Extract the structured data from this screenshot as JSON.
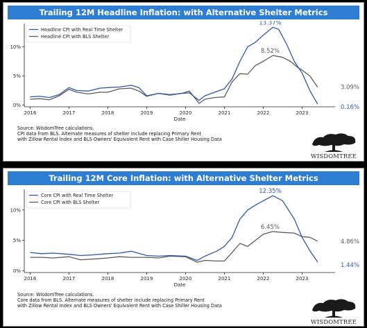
{
  "colors": {
    "title_bg": "#2d7dd2",
    "series_blue": "#2f57a8",
    "series_gray": "#5a5a5a"
  },
  "brand": {
    "name": "WisdomTree",
    "logo_text": "WISDOMTREE",
    "icon": "tree-logo-icon"
  },
  "chart_data": [
    {
      "type": "line",
      "title": "Trailing 12M Headline Inflation: with Alternative Shelter Metrics",
      "xlabel": "Date",
      "ylabel": "",
      "xlim": [
        2015.85,
        2023.85
      ],
      "ylim": [
        -0.3,
        14.0
      ],
      "xticks": [
        "2016",
        "2017",
        "2018",
        "2019",
        "2020",
        "2021",
        "2022",
        "2023"
      ],
      "yticks": [
        "0%",
        "5%",
        "10%"
      ],
      "ytick_values": [
        0,
        5,
        10
      ],
      "legend_position": "top-left",
      "grid": false,
      "series": [
        {
          "name": "Headline CPI with Real Time Shelter",
          "x": [
            2016.0,
            2016.25,
            2016.5,
            2016.75,
            2017.0,
            2017.2,
            2017.5,
            2017.8,
            2018.0,
            2018.3,
            2018.6,
            2018.8,
            2019.0,
            2019.3,
            2019.6,
            2019.9,
            2020.1,
            2020.35,
            2020.5,
            2020.75,
            2021.0,
            2021.2,
            2021.4,
            2021.6,
            2021.8,
            2022.0,
            2022.25,
            2022.4,
            2022.6,
            2022.8,
            2023.0,
            2023.2,
            2023.4
          ],
          "y": [
            1.4,
            1.5,
            1.3,
            1.8,
            3.0,
            2.5,
            2.4,
            2.9,
            3.0,
            3.1,
            3.4,
            3.0,
            1.6,
            2.0,
            1.8,
            2.0,
            2.1,
            0.8,
            1.6,
            2.2,
            2.8,
            4.5,
            7.5,
            10.0,
            10.8,
            12.0,
            13.37,
            13.0,
            10.5,
            7.5,
            5.5,
            2.5,
            0.16
          ],
          "end_label": "0.16%",
          "peak_label": "13.37%"
        },
        {
          "name": "Headline CPI with BLS Shelter",
          "x": [
            2016.0,
            2016.25,
            2016.5,
            2016.75,
            2017.0,
            2017.2,
            2017.5,
            2017.8,
            2018.0,
            2018.3,
            2018.6,
            2018.8,
            2019.0,
            2019.3,
            2019.6,
            2019.9,
            2020.1,
            2020.35,
            2020.5,
            2020.75,
            2021.0,
            2021.2,
            2021.4,
            2021.6,
            2021.8,
            2022.0,
            2022.25,
            2022.5,
            2022.7,
            2022.9,
            2023.0,
            2023.2,
            2023.4
          ],
          "y": [
            1.0,
            1.1,
            0.9,
            1.6,
            2.7,
            2.2,
            1.9,
            2.2,
            2.2,
            2.8,
            2.9,
            2.4,
            1.5,
            2.0,
            1.7,
            2.0,
            2.4,
            0.3,
            1.0,
            1.3,
            1.4,
            4.0,
            5.4,
            5.3,
            6.8,
            7.5,
            8.52,
            8.2,
            7.5,
            6.4,
            6.0,
            5.0,
            3.09
          ],
          "end_label": "3.09%",
          "peak_label": "8.52%"
        }
      ],
      "annotations": [
        "13.37%",
        "8.52%",
        "3.09%",
        "0.16%"
      ],
      "source": [
        "Source: WisdomTree calculations.",
        "CPI data from BLS. Alternate measures of shelter include replacing Primary Rent",
        "with Zillow Rental Index and BLS Owners' Equivalent Rent with Case Shiller Housing Data"
      ]
    },
    {
      "type": "line",
      "title": "Trailing 12M Core Inflation: with Alternative Shelter Metrics",
      "xlabel": "Date",
      "ylabel": "",
      "xlim": [
        2015.85,
        2023.85
      ],
      "ylim": [
        -0.3,
        13.4
      ],
      "xticks": [
        "2016",
        "2017",
        "2018",
        "2019",
        "2020",
        "2021",
        "2022",
        "2023"
      ],
      "yticks": [
        "0%",
        "5%",
        "10%"
      ],
      "ytick_values": [
        0,
        5,
        10
      ],
      "legend_position": "top-left",
      "grid": false,
      "series": [
        {
          "name": "Core CPI with Real Time Shelter",
          "x": [
            2016.0,
            2016.3,
            2016.6,
            2017.0,
            2017.3,
            2017.6,
            2018.0,
            2018.3,
            2018.6,
            2019.0,
            2019.3,
            2019.6,
            2020.0,
            2020.3,
            2020.5,
            2020.8,
            2021.0,
            2021.2,
            2021.4,
            2021.6,
            2021.8,
            2022.0,
            2022.25,
            2022.5,
            2022.8,
            2023.0,
            2023.2,
            2023.4
          ],
          "y": [
            3.0,
            2.8,
            2.9,
            2.7,
            2.5,
            2.6,
            2.8,
            2.9,
            3.2,
            2.5,
            2.4,
            2.5,
            2.4,
            1.7,
            2.4,
            3.2,
            4.0,
            5.5,
            8.5,
            10.0,
            10.8,
            11.5,
            12.35,
            11.5,
            8.5,
            5.5,
            3.3,
            1.44
          ],
          "end_label": "1.44%",
          "peak_label": "12.35%"
        },
        {
          "name": "Core CPI with BLS Shelter",
          "x": [
            2016.0,
            2016.3,
            2016.6,
            2017.0,
            2017.3,
            2017.6,
            2018.0,
            2018.3,
            2018.6,
            2019.0,
            2019.3,
            2019.6,
            2020.0,
            2020.3,
            2020.5,
            2020.8,
            2021.0,
            2021.2,
            2021.4,
            2021.6,
            2021.8,
            2022.0,
            2022.25,
            2022.5,
            2022.8,
            2023.0,
            2023.2,
            2023.4
          ],
          "y": [
            2.2,
            2.2,
            2.1,
            2.3,
            1.8,
            1.9,
            2.1,
            2.3,
            2.2,
            2.2,
            2.1,
            2.4,
            2.3,
            1.4,
            1.7,
            1.6,
            1.6,
            3.0,
            4.5,
            4.0,
            5.0,
            6.0,
            6.45,
            6.3,
            6.2,
            5.6,
            5.5,
            4.86
          ],
          "end_label": "4.86%",
          "peak_label": "6.45%"
        }
      ],
      "annotations": [
        "12.35%",
        "6.45%",
        "4.86%",
        "1.44%"
      ],
      "source": [
        "Source: WisdomTree calculations.",
        "Core data from BLS. Alternate measures of shelter include replacing Primary Rent",
        "with Zillow Rental Index and BLS Owners' Equivalent Rent with Case Shiller Housing Data"
      ]
    }
  ]
}
